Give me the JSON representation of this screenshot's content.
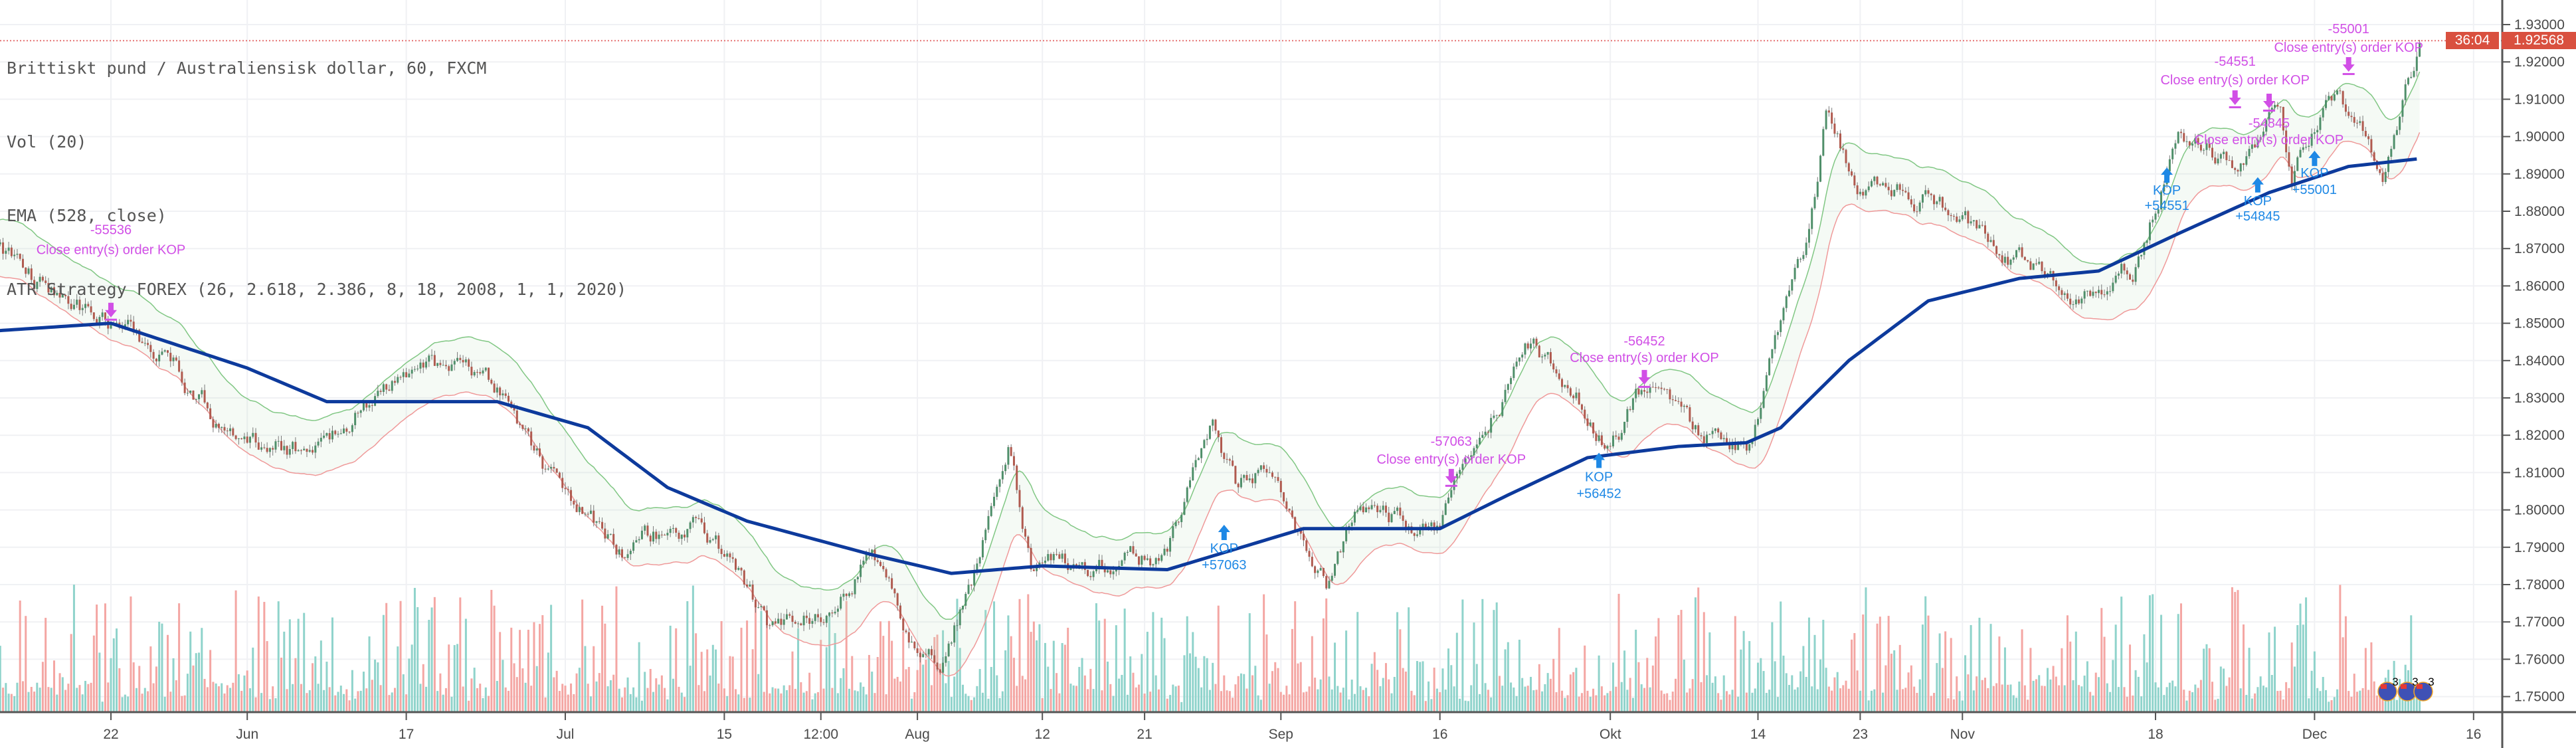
{
  "legend": {
    "symbol": "Brittiskt pund / Australiensisk dollar, 60, FXCM",
    "volume": "Vol (20)",
    "ema": "EMA (528, close)",
    "strategy": "ATR Strategy FOREX (26, 2.618, 2.386, 8, 18, 2008, 1, 1, 2020)"
  },
  "price_axis": {
    "current_price": "1.92568",
    "countdown": "36:04"
  },
  "colors": {
    "up_candle": "#4f8f6a",
    "down_candle": "#b05a4f",
    "wick": "#7a7a7a",
    "ema": "#0d3a9c",
    "upper_band": "#81c784",
    "lower_band": "#ef9a9a",
    "volume_up": "#8fd3cb",
    "volume_down": "#f4a6a3",
    "close_marker": "#d14fe6",
    "entry_marker": "#1e88e5",
    "price_tag": "#d9503f"
  },
  "chart_data": {
    "type": "candlestick",
    "ylim": [
      1.745,
      1.935
    ],
    "yticks": [
      "1.93000",
      "1.92000",
      "1.91000",
      "1.90000",
      "1.89000",
      "1.88000",
      "1.87000",
      "1.86000",
      "1.85000",
      "1.84000",
      "1.83000",
      "1.82000",
      "1.81000",
      "1.80000",
      "1.79000",
      "1.78000",
      "1.77000",
      "1.76000",
      "1.75000"
    ],
    "xticks": [
      {
        "label": "22",
        "date": "2019-05-22"
      },
      {
        "label": "Jun",
        "date": "2019-06-03"
      },
      {
        "label": "17",
        "date": "2019-06-17"
      },
      {
        "label": "Jul",
        "date": "2019-07-01"
      },
      {
        "label": "15",
        "date": "2019-07-15"
      },
      {
        "label": "12:00",
        "date": "2019-07-23T12:00"
      },
      {
        "label": "Aug",
        "date": "2019-08-01"
      },
      {
        "label": "12",
        "date": "2019-08-12"
      },
      {
        "label": "21",
        "date": "2019-08-21"
      },
      {
        "label": "Sep",
        "date": "2019-09-02"
      },
      {
        "label": "16",
        "date": "2019-09-16"
      },
      {
        "label": "Okt",
        "date": "2019-10-01"
      },
      {
        "label": "14",
        "date": "2019-10-14"
      },
      {
        "label": "23",
        "date": "2019-10-23"
      },
      {
        "label": "Nov",
        "date": "2019-11-01"
      },
      {
        "label": "18",
        "date": "2019-11-18"
      },
      {
        "label": "Dec",
        "date": "2019-12-02"
      },
      {
        "label": "16",
        "date": "2019-12-16"
      }
    ],
    "last_price": 1.92568,
    "close_path": [
      [
        "2019-05-12",
        1.869
      ],
      [
        "2019-05-18",
        1.856
      ],
      [
        "2019-05-22",
        1.851
      ],
      [
        "2019-05-27",
        1.84
      ],
      [
        "2019-06-03",
        1.815
      ],
      [
        "2019-06-10",
        1.817
      ],
      [
        "2019-06-15",
        1.833
      ],
      [
        "2019-06-21",
        1.838
      ],
      [
        "2019-06-25",
        1.831
      ],
      [
        "2019-06-30",
        1.808
      ],
      [
        "2019-07-06",
        1.788
      ],
      [
        "2019-07-12",
        1.797
      ],
      [
        "2019-07-16",
        1.784
      ],
      [
        "2019-07-19",
        1.768
      ],
      [
        "2019-07-25",
        1.775
      ],
      [
        "2019-07-28",
        1.791
      ],
      [
        "2019-07-31",
        1.766
      ],
      [
        "2019-08-03",
        1.761
      ],
      [
        "2019-08-06",
        1.784
      ],
      [
        "2019-08-09",
        1.815
      ],
      [
        "2019-08-11",
        1.784
      ],
      [
        "2019-08-15",
        1.786
      ],
      [
        "2019-08-23",
        1.788
      ],
      [
        "2019-08-27",
        1.824
      ],
      [
        "2019-08-29",
        1.806
      ],
      [
        "2019-09-01",
        1.811
      ],
      [
        "2019-09-06",
        1.781
      ],
      [
        "2019-09-09",
        1.802
      ],
      [
        "2019-09-16",
        1.793
      ],
      [
        "2019-09-19",
        1.82
      ],
      [
        "2019-09-24",
        1.844
      ],
      [
        "2019-09-28",
        1.831
      ],
      [
        "2019-10-01",
        1.817
      ],
      [
        "2019-10-05",
        1.838
      ],
      [
        "2019-10-08",
        1.822
      ],
      [
        "2019-10-13",
        1.817
      ],
      [
        "2019-10-15",
        1.838
      ],
      [
        "2019-10-18",
        1.865
      ],
      [
        "2019-10-20",
        1.905
      ],
      [
        "2019-10-23",
        1.887
      ],
      [
        "2019-10-29",
        1.883
      ],
      [
        "2019-11-04",
        1.871
      ],
      [
        "2019-11-08",
        1.865
      ],
      [
        "2019-11-13",
        1.856
      ],
      [
        "2019-11-16",
        1.865
      ],
      [
        "2019-11-20",
        1.901
      ],
      [
        "2019-11-25",
        1.892
      ],
      [
        "2019-11-29",
        1.91
      ],
      [
        "2019-11-30",
        1.892
      ],
      [
        "2019-12-04",
        1.91
      ],
      [
        "2019-12-08",
        1.892
      ],
      [
        "2019-12-11",
        1.923
      ],
      [
        "2019-12-11T08:00",
        1.92568
      ]
    ],
    "ema_528": [
      [
        "2019-05-12",
        1.848
      ],
      [
        "2019-05-22",
        1.85
      ],
      [
        "2019-06-03",
        1.838
      ],
      [
        "2019-06-10",
        1.829
      ],
      [
        "2019-06-18",
        1.829
      ],
      [
        "2019-06-25",
        1.829
      ],
      [
        "2019-07-03",
        1.822
      ],
      [
        "2019-07-10",
        1.806
      ],
      [
        "2019-07-17",
        1.797
      ],
      [
        "2019-07-28",
        1.788
      ],
      [
        "2019-08-04",
        1.783
      ],
      [
        "2019-08-12",
        1.785
      ],
      [
        "2019-08-23",
        1.784
      ],
      [
        "2019-09-04",
        1.795
      ],
      [
        "2019-09-16",
        1.795
      ],
      [
        "2019-09-22",
        1.804
      ],
      [
        "2019-09-29",
        1.814
      ],
      [
        "2019-10-07",
        1.817
      ],
      [
        "2019-10-13",
        1.818
      ],
      [
        "2019-10-16",
        1.822
      ],
      [
        "2019-10-22",
        1.84
      ],
      [
        "2019-10-29",
        1.856
      ],
      [
        "2019-11-06",
        1.862
      ],
      [
        "2019-11-13",
        1.864
      ],
      [
        "2019-11-20",
        1.874
      ],
      [
        "2019-11-28",
        1.885
      ],
      [
        "2019-12-05",
        1.892
      ],
      [
        "2019-12-11",
        1.894
      ]
    ],
    "trades": [
      {
        "kind": "close",
        "date": "2019-05-22",
        "price": 1.853,
        "label": "Close entry(s) order KOP",
        "pnl": "-55536"
      },
      {
        "kind": "entry",
        "date": "2019-08-28",
        "price": 1.7937,
        "label": "KOP",
        "pnl": "+57063"
      },
      {
        "kind": "close",
        "date": "2019-09-17",
        "price": 1.8085,
        "label": "Close entry(s) order KOP",
        "pnl": "-57063"
      },
      {
        "kind": "entry",
        "date": "2019-09-30",
        "price": 1.813,
        "label": "KOP",
        "pnl": "+56452"
      },
      {
        "kind": "close",
        "date": "2019-10-04",
        "price": 1.835,
        "label": "Close entry(s) order KOP",
        "pnl": "-56452"
      },
      {
        "kind": "entry",
        "date": "2019-11-19",
        "price": 1.8894,
        "label": "KOP",
        "pnl": "+54551"
      },
      {
        "kind": "close",
        "date": "2019-11-25",
        "price": 1.9099,
        "label": "Close entry(s) order KOP",
        "pnl": "-54551"
      },
      {
        "kind": "entry",
        "date": "2019-11-27",
        "price": 1.8868,
        "label": "KOP",
        "pnl": "+54845"
      },
      {
        "kind": "close",
        "date": "2019-11-28",
        "price": 1.909,
        "label": "Close entry(s) order KOP",
        "pnl": "-54845"
      },
      {
        "kind": "entry",
        "date": "2019-12-02",
        "price": 1.8939,
        "label": "KOP",
        "pnl": "+55001"
      },
      {
        "kind": "close",
        "date": "2019-12-05",
        "price": 1.9188,
        "label": "Close entry(s) order KOP",
        "pnl": "-55001"
      }
    ],
    "events": [
      {
        "icon": "australia-flag-icon",
        "label": "3"
      },
      {
        "icon": "australia-flag-icon",
        "label": "3"
      },
      {
        "icon": "australia-flag-icon",
        "label": "3"
      }
    ]
  }
}
